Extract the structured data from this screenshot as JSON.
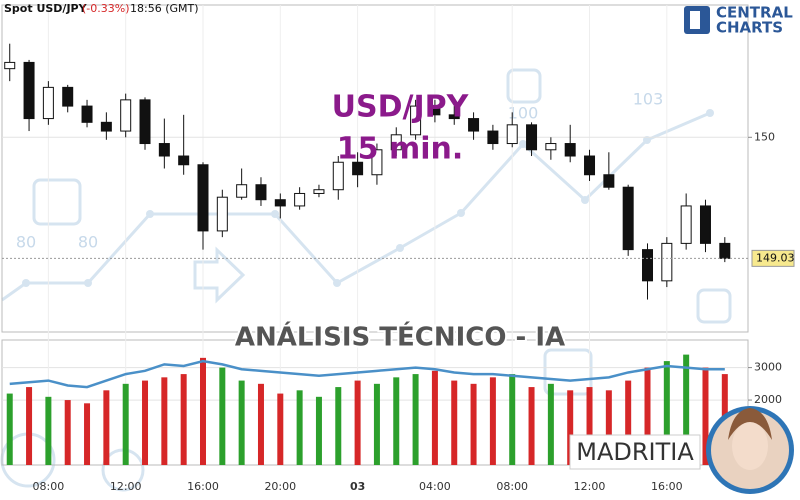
{
  "header": {
    "title": "Spot USD/JPY",
    "change": "(-0.33%)",
    "time": "18:56 (GMT)"
  },
  "logo": {
    "line1": "CENTRAL",
    "line2": "CHARTS"
  },
  "overlay": {
    "title": "USD/JPY",
    "subtitle": "15 min.",
    "banner": "ANÁLISIS TÉCNICO - IA",
    "brand": "MADRITIA"
  },
  "watermark_labels": [
    "80",
    "80",
    "100",
    "103"
  ],
  "chart_data": [
    {
      "type": "candlestick",
      "x": [
        6,
        7,
        8,
        9,
        10,
        11,
        12,
        13,
        14,
        15,
        16,
        17,
        18,
        19,
        20,
        21,
        22,
        23,
        24,
        25,
        26,
        27,
        28,
        29,
        30,
        31,
        32,
        33,
        34,
        35,
        36,
        37,
        38,
        39,
        40,
        41,
        42,
        43
      ],
      "open": [
        150.55,
        150.6,
        150.15,
        150.4,
        150.25,
        150.12,
        150.05,
        150.3,
        149.95,
        149.85,
        149.78,
        149.25,
        149.52,
        149.62,
        149.5,
        149.45,
        149.55,
        149.58,
        149.8,
        149.7,
        149.9,
        150.02,
        150.25,
        150.18,
        150.15,
        150.05,
        149.95,
        150.1,
        149.9,
        149.95,
        149.85,
        149.7,
        149.6,
        149.1,
        148.85,
        149.15,
        149.45,
        149.15
      ],
      "high": [
        150.75,
        150.62,
        150.45,
        150.42,
        150.3,
        150.2,
        150.35,
        150.32,
        150.15,
        150.18,
        149.8,
        149.58,
        149.75,
        149.68,
        149.55,
        149.6,
        149.62,
        149.85,
        149.88,
        149.95,
        150.08,
        150.3,
        150.3,
        150.25,
        150.2,
        150.1,
        150.2,
        150.12,
        150.0,
        150.1,
        149.9,
        149.88,
        149.62,
        149.15,
        149.2,
        149.55,
        149.5,
        149.2
      ],
      "low": [
        150.45,
        150.05,
        150.1,
        150.2,
        150.08,
        149.98,
        150.0,
        149.9,
        149.75,
        149.7,
        149.1,
        149.2,
        149.5,
        149.45,
        149.35,
        149.42,
        149.52,
        149.5,
        149.6,
        149.62,
        149.85,
        149.98,
        150.12,
        150.1,
        149.98,
        149.9,
        149.92,
        149.85,
        149.82,
        149.8,
        149.65,
        149.58,
        149.05,
        148.7,
        148.8,
        149.1,
        149.08,
        149.0
      ],
      "close": [
        150.6,
        150.15,
        150.4,
        150.25,
        150.12,
        150.05,
        150.3,
        149.95,
        149.85,
        149.78,
        149.25,
        149.52,
        149.62,
        149.5,
        149.45,
        149.55,
        149.58,
        149.8,
        149.7,
        149.9,
        150.02,
        150.25,
        150.18,
        150.15,
        150.05,
        149.95,
        150.1,
        149.9,
        149.95,
        149.85,
        149.7,
        149.6,
        149.1,
        148.85,
        149.15,
        149.45,
        149.15,
        149.03
      ],
      "up_color": "#2ca02c",
      "down_color": "#d62728",
      "body_color": "#111111",
      "xlim": [
        5.6,
        44.2
      ],
      "ylim": [
        148.44,
        151.06
      ],
      "yticks": [
        150
      ],
      "last_price": 149.03,
      "grid": true
    },
    {
      "type": "volume",
      "x": [
        6,
        7,
        8,
        9,
        10,
        11,
        12,
        13,
        14,
        15,
        16,
        17,
        18,
        19,
        20,
        21,
        22,
        23,
        24,
        25,
        26,
        27,
        28,
        29,
        30,
        31,
        32,
        33,
        34,
        35,
        36,
        37,
        38,
        39,
        40,
        41,
        42,
        43
      ],
      "values": [
        2200,
        2400,
        2100,
        2000,
        1900,
        2300,
        2500,
        2600,
        2700,
        2800,
        3300,
        3000,
        2600,
        2500,
        2200,
        2300,
        2100,
        2400,
        2600,
        2500,
        2700,
        2800,
        2900,
        2600,
        2500,
        2700,
        2800,
        2400,
        2500,
        2300,
        2400,
        2300,
        2600,
        3000,
        3200,
        3400,
        3000,
        2800
      ],
      "average": {
        "color": "#4a90c8",
        "values": [
          2500,
          2550,
          2600,
          2450,
          2400,
          2600,
          2800,
          2900,
          3100,
          3050,
          3200,
          3100,
          2950,
          2900,
          2850,
          2800,
          2750,
          2800,
          2850,
          2900,
          2950,
          3000,
          2950,
          2850,
          2800,
          2800,
          2750,
          2700,
          2650,
          2600,
          2650,
          2700,
          2850,
          2950,
          3050,
          3000,
          2950,
          2950
        ]
      },
      "xlim": [
        5.6,
        44.2
      ],
      "ylim": [
        0,
        3850
      ],
      "yticks": [
        2000,
        3000
      ],
      "xticks": [
        {
          "value": 8,
          "label": "08:00"
        },
        {
          "value": 12,
          "label": "12:00"
        },
        {
          "value": 16,
          "label": "16:00"
        },
        {
          "value": 20,
          "label": "20:00"
        },
        {
          "value": 24,
          "label": "03"
        },
        {
          "value": 28,
          "label": "04:00"
        },
        {
          "value": 32,
          "label": "08:00"
        },
        {
          "value": 36,
          "label": "12:00"
        },
        {
          "value": 40,
          "label": "16:00"
        }
      ],
      "grid": true
    }
  ]
}
